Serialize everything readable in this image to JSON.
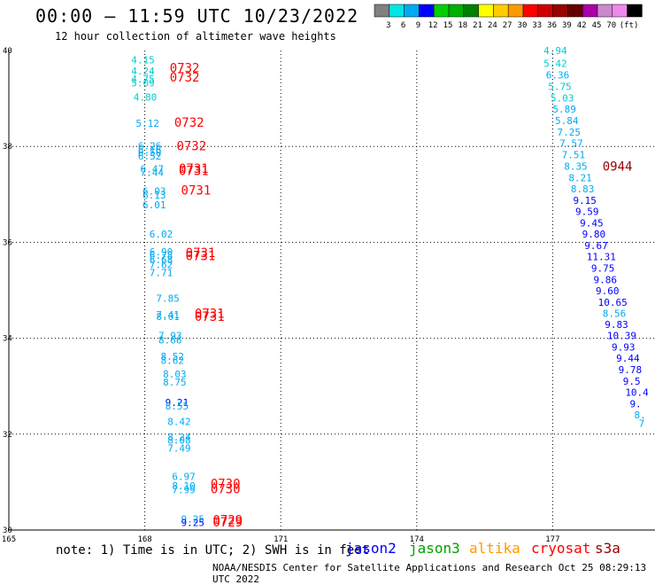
{
  "header": {
    "title": "00:00 – 11:59 UTC 10/23/2022",
    "subtitle": "12 hour collection of altimeter wave heights"
  },
  "legend": {
    "colors": [
      "#808080",
      "#00e5e5",
      "#00aaf0",
      "#0000ff",
      "#00d000",
      "#00b000",
      "#008000",
      "#ffff00",
      "#ffcc00",
      "#ff9900",
      "#ff0000",
      "#d00000",
      "#990000",
      "#660000",
      "#aa00aa",
      "#cc88cc",
      "#ee88ee",
      "#000000"
    ],
    "labels": [
      "3",
      "6",
      "9",
      "12",
      "15",
      "18",
      "21",
      "24",
      "27",
      "30",
      "33",
      "36",
      "39",
      "42",
      "45",
      "70",
      "(ft)"
    ]
  },
  "axes": {
    "lon_ticks": [
      "165",
      "168",
      "171",
      "174",
      "177"
    ],
    "lat_ticks": [
      "40",
      "38",
      "36",
      "34",
      "32",
      "30"
    ]
  },
  "footer": {
    "note": "note: 1) Time is in UTC; 2) SWH is in feet",
    "satellites": [
      {
        "name": "jason2",
        "color": "#0000ff"
      },
      {
        "name": "jason3",
        "color": "#00a000"
      },
      {
        "name": "altika",
        "color": "#ff9900"
      },
      {
        "name": "cryosat",
        "color": "#ff0000"
      },
      {
        "name": "s3a",
        "color": "#990000"
      }
    ],
    "credit": "NOAA/NESDIS Center for Satellite Applications and Research    Oct 25 08:29:13 UTC 2022"
  },
  "chart_data": {
    "type": "map",
    "lon_range": [
      165,
      179.5
    ],
    "lat_range": [
      30,
      40
    ],
    "grid": true,
    "track_labels": [
      {
        "text": "4.15",
        "lon": 167.7,
        "lat": 39.73,
        "color": "#00cccc"
      },
      {
        "text": "4.24",
        "lon": 167.7,
        "lat": 39.5,
        "color": "#00cccc"
      },
      {
        "text": "4.75",
        "lon": 167.7,
        "lat": 39.33,
        "color": "#00cccc"
      },
      {
        "text": "5.09",
        "lon": 167.7,
        "lat": 39.25,
        "color": "#00cccc"
      },
      {
        "text": "4.80",
        "lon": 167.75,
        "lat": 38.96,
        "color": "#00cccc"
      },
      {
        "text": "5.12",
        "lon": 167.8,
        "lat": 38.41,
        "color": "#00aaf0"
      },
      {
        "text": "6.26",
        "lon": 167.85,
        "lat": 37.94,
        "color": "#00aaf0"
      },
      {
        "text": "6.16",
        "lon": 167.85,
        "lat": 37.86,
        "color": "#00aaf0"
      },
      {
        "text": "6.50",
        "lon": 167.85,
        "lat": 37.8,
        "color": "#00aaf0"
      },
      {
        "text": "6.52",
        "lon": 167.85,
        "lat": 37.73,
        "color": "#00aaf0"
      },
      {
        "text": "6.47",
        "lon": 167.9,
        "lat": 37.46,
        "color": "#00aaf0"
      },
      {
        "text": "7.44",
        "lon": 167.9,
        "lat": 37.38,
        "color": "#00aaf0"
      },
      {
        "text": "6.03",
        "lon": 167.95,
        "lat": 37.0,
        "color": "#00aaf0"
      },
      {
        "text": "6.13",
        "lon": 167.95,
        "lat": 36.91,
        "color": "#00aaf0"
      },
      {
        "text": "6.01",
        "lon": 167.95,
        "lat": 36.71,
        "color": "#00aaf0"
      },
      {
        "text": "6.02",
        "lon": 168.1,
        "lat": 36.1,
        "color": "#00aaf0"
      },
      {
        "text": "6.90",
        "lon": 168.1,
        "lat": 35.73,
        "color": "#00aaf0"
      },
      {
        "text": "6.78",
        "lon": 168.1,
        "lat": 35.66,
        "color": "#00aaf0"
      },
      {
        "text": "6.68",
        "lon": 168.1,
        "lat": 35.56,
        "color": "#00aaf0"
      },
      {
        "text": "7.62",
        "lon": 168.1,
        "lat": 35.46,
        "color": "#00aaf0"
      },
      {
        "text": "7.71",
        "lon": 168.1,
        "lat": 35.3,
        "color": "#00aaf0"
      },
      {
        "text": "7.85",
        "lon": 168.25,
        "lat": 34.76,
        "color": "#00aaf0"
      },
      {
        "text": "7.41",
        "lon": 168.25,
        "lat": 34.42,
        "color": "#00aaf0"
      },
      {
        "text": "8.01",
        "lon": 168.25,
        "lat": 34.38,
        "color": "#00aaf0"
      },
      {
        "text": "7.93",
        "lon": 168.3,
        "lat": 33.98,
        "color": "#00aaf0"
      },
      {
        "text": "8.66",
        "lon": 168.3,
        "lat": 33.89,
        "color": "#00aaf0"
      },
      {
        "text": "8.52",
        "lon": 168.35,
        "lat": 33.55,
        "color": "#00aaf0"
      },
      {
        "text": "8.62",
        "lon": 168.35,
        "lat": 33.47,
        "color": "#00aaf0"
      },
      {
        "text": "8.03",
        "lon": 168.4,
        "lat": 33.18,
        "color": "#00aaf0"
      },
      {
        "text": "8.75",
        "lon": 168.4,
        "lat": 33.01,
        "color": "#00aaf0"
      },
      {
        "text": "9.21",
        "lon": 168.45,
        "lat": 32.59,
        "color": "#0000ff"
      },
      {
        "text": "8.55",
        "lon": 168.45,
        "lat": 32.51,
        "color": "#00aaf0"
      },
      {
        "text": "8.42",
        "lon": 168.5,
        "lat": 32.19,
        "color": "#00aaf0"
      },
      {
        "text": "8.24",
        "lon": 168.5,
        "lat": 31.87,
        "color": "#00aaf0"
      },
      {
        "text": "8.08",
        "lon": 168.5,
        "lat": 31.8,
        "color": "#00aaf0"
      },
      {
        "text": "7.49",
        "lon": 168.5,
        "lat": 31.64,
        "color": "#00aaf0"
      },
      {
        "text": "6.97",
        "lon": 168.6,
        "lat": 31.04,
        "color": "#00aaf0"
      },
      {
        "text": "8.10",
        "lon": 168.6,
        "lat": 30.85,
        "color": "#00aaf0"
      },
      {
        "text": "7.99",
        "lon": 168.6,
        "lat": 30.77,
        "color": "#00aaf0"
      },
      {
        "text": "9.25",
        "lon": 168.8,
        "lat": 30.16,
        "color": "#00aaf0"
      },
      {
        "text": "9.25",
        "lon": 168.8,
        "lat": 30.08,
        "color": "#0000ff"
      },
      {
        "text": "4.94",
        "lon": 176.8,
        "lat": 39.93,
        "color": "#00cccc"
      },
      {
        "text": "5.42",
        "lon": 176.8,
        "lat": 39.66,
        "color": "#00cccc"
      },
      {
        "text": "6.36",
        "lon": 176.85,
        "lat": 39.42,
        "color": "#00aaf0"
      },
      {
        "text": "5.75",
        "lon": 176.9,
        "lat": 39.18,
        "color": "#00cccc"
      },
      {
        "text": "5.03",
        "lon": 176.95,
        "lat": 38.94,
        "color": "#00cccc"
      },
      {
        "text": "5.89",
        "lon": 177.0,
        "lat": 38.71,
        "color": "#00aaf0"
      },
      {
        "text": "5.84",
        "lon": 177.05,
        "lat": 38.47,
        "color": "#00aaf0"
      },
      {
        "text": "7.25",
        "lon": 177.1,
        "lat": 38.23,
        "color": "#00aaf0"
      },
      {
        "text": "7.57",
        "lon": 177.15,
        "lat": 37.99,
        "color": "#00aaf0"
      },
      {
        "text": "7.51",
        "lon": 177.2,
        "lat": 37.75,
        "color": "#00aaf0"
      },
      {
        "text": "8.35",
        "lon": 177.25,
        "lat": 37.51,
        "color": "#00aaf0"
      },
      {
        "text": "8.21",
        "lon": 177.35,
        "lat": 37.27,
        "color": "#00aaf0"
      },
      {
        "text": "8.83",
        "lon": 177.4,
        "lat": 37.04,
        "color": "#00aaf0"
      },
      {
        "text": "9.15",
        "lon": 177.45,
        "lat": 36.8,
        "color": "#0000ff"
      },
      {
        "text": "9.59",
        "lon": 177.5,
        "lat": 36.57,
        "color": "#0000ff"
      },
      {
        "text": "9.45",
        "lon": 177.6,
        "lat": 36.33,
        "color": "#0000ff"
      },
      {
        "text": "9.80",
        "lon": 177.65,
        "lat": 36.1,
        "color": "#0000ff"
      },
      {
        "text": "9.67",
        "lon": 177.7,
        "lat": 35.86,
        "color": "#0000ff"
      },
      {
        "text": "11.31",
        "lon": 177.75,
        "lat": 35.63,
        "color": "#0000ff"
      },
      {
        "text": "9.75",
        "lon": 177.85,
        "lat": 35.39,
        "color": "#0000ff"
      },
      {
        "text": "9.86",
        "lon": 177.9,
        "lat": 35.15,
        "color": "#0000ff"
      },
      {
        "text": "9.60",
        "lon": 177.95,
        "lat": 34.92,
        "color": "#0000ff"
      },
      {
        "text": "10.65",
        "lon": 178.0,
        "lat": 34.68,
        "color": "#0000ff"
      },
      {
        "text": "8.56",
        "lon": 178.1,
        "lat": 34.45,
        "color": "#00aaf0"
      },
      {
        "text": "9.83",
        "lon": 178.15,
        "lat": 34.21,
        "color": "#0000ff"
      },
      {
        "text": "10.39",
        "lon": 178.2,
        "lat": 33.98,
        "color": "#0000ff"
      },
      {
        "text": "9.93",
        "lon": 178.3,
        "lat": 33.74,
        "color": "#0000ff"
      },
      {
        "text": "9.44",
        "lon": 178.4,
        "lat": 33.51,
        "color": "#0000ff"
      },
      {
        "text": "9.78",
        "lon": 178.45,
        "lat": 33.27,
        "color": "#0000ff"
      },
      {
        "text": "9.5",
        "lon": 178.55,
        "lat": 33.03,
        "color": "#0000ff"
      },
      {
        "text": "10.4",
        "lon": 178.6,
        "lat": 32.8,
        "color": "#0000ff"
      },
      {
        "text": "9.",
        "lon": 178.7,
        "lat": 32.56,
        "color": "#0000ff"
      },
      {
        "text": "8.",
        "lon": 178.8,
        "lat": 32.33,
        "color": "#00aaf0"
      },
      {
        "text": "7",
        "lon": 178.9,
        "lat": 32.15,
        "color": "#00aaf0"
      }
    ],
    "time_labels": [
      {
        "text": "0732",
        "lon": 168.55,
        "lat": 39.55,
        "color": "#ff0000"
      },
      {
        "text": "0732",
        "lon": 168.55,
        "lat": 39.35,
        "color": "#ff0000"
      },
      {
        "text": "0732",
        "lon": 168.65,
        "lat": 38.41,
        "color": "#ff0000"
      },
      {
        "text": "0732",
        "lon": 168.7,
        "lat": 37.92,
        "color": "#ff0000"
      },
      {
        "text": "0731",
        "lon": 168.75,
        "lat": 37.45,
        "color": "#ff0000"
      },
      {
        "text": "0731",
        "lon": 168.75,
        "lat": 37.4,
        "color": "#ff0000"
      },
      {
        "text": "0731",
        "lon": 168.8,
        "lat": 37.0,
        "color": "#ff0000"
      },
      {
        "text": "0731",
        "lon": 168.9,
        "lat": 35.69,
        "color": "#ff0000"
      },
      {
        "text": "0731",
        "lon": 168.9,
        "lat": 35.63,
        "color": "#ff0000"
      },
      {
        "text": "0731",
        "lon": 169.1,
        "lat": 34.43,
        "color": "#ff0000"
      },
      {
        "text": "0731",
        "lon": 169.1,
        "lat": 34.36,
        "color": "#ff0000"
      },
      {
        "text": "0730",
        "lon": 169.45,
        "lat": 30.88,
        "color": "#ff0000"
      },
      {
        "text": "0730",
        "lon": 169.45,
        "lat": 30.77,
        "color": "#ff0000"
      },
      {
        "text": "0729",
        "lon": 169.5,
        "lat": 30.12,
        "color": "#ff0000"
      },
      {
        "text": "0729",
        "lon": 169.5,
        "lat": 30.07,
        "color": "#ff0000"
      },
      {
        "text": "0944",
        "lon": 178.1,
        "lat": 37.5,
        "color": "#990000"
      }
    ]
  }
}
